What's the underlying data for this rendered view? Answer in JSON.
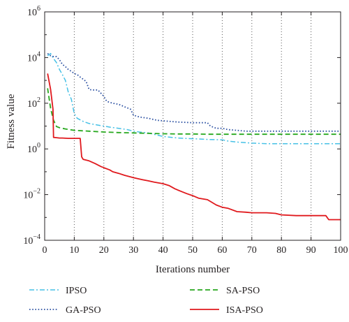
{
  "chart_data": {
    "type": "line",
    "title": "",
    "xlabel": "Iterations number",
    "ylabel": "Fitness value",
    "xlim": [
      0,
      100
    ],
    "ylim_exponent": [
      -4,
      6
    ],
    "yscale": "log",
    "grid": true,
    "grid_style": "dotted vertical",
    "legend_position": "bottom",
    "x_ticks": [
      "0",
      "10",
      "20",
      "30",
      "40",
      "50",
      "60",
      "70",
      "80",
      "90",
      "100"
    ],
    "y_ticks": [
      {
        "base": "10",
        "exp": "−4"
      },
      {
        "base": "10",
        "exp": "−2"
      },
      {
        "base": "10",
        "exp": "0"
      },
      {
        "base": "10",
        "exp": "2"
      },
      {
        "base": "10",
        "exp": "4"
      },
      {
        "base": "10",
        "exp": "6"
      }
    ],
    "series": [
      {
        "name": "IPSO",
        "color": "#47c1e6",
        "dash": "7,3,2,3",
        "width": 1.5,
        "x": [
          1,
          2,
          3,
          4,
          5,
          6,
          7,
          8,
          9,
          10,
          11,
          13,
          15,
          18,
          20,
          22,
          25,
          28,
          30,
          32,
          35,
          40,
          45,
          50,
          55,
          60,
          62,
          65,
          70,
          75,
          80,
          85,
          90,
          95,
          100
        ],
        "y": [
          12000,
          15000,
          9000,
          6000,
          3000,
          1800,
          1000,
          300,
          150,
          35,
          22,
          16,
          13,
          11,
          10,
          9,
          8,
          7,
          6,
          5.5,
          5,
          3.5,
          3,
          2.8,
          2.6,
          2.5,
          2.2,
          2,
          1.8,
          1.7,
          1.7,
          1.7,
          1.7,
          1.7,
          1.7
        ]
      },
      {
        "name": "SA-PSO",
        "color": "#27a81e",
        "dash": "7,4",
        "width": 1.8,
        "x": [
          1,
          2,
          3,
          4,
          5,
          7,
          10,
          15,
          20,
          25,
          30,
          35,
          40,
          45,
          50,
          55,
          60,
          70,
          80,
          90,
          100
        ],
        "y": [
          450,
          60,
          18,
          9.5,
          8.5,
          7.5,
          6.5,
          6,
          5.5,
          5.2,
          5,
          4.8,
          4.6,
          4.5,
          4.5,
          4.4,
          4.4,
          4.4,
          4.4,
          4.4,
          4.4
        ]
      },
      {
        "name": "GA-PSO",
        "color": "#2a4fa1",
        "dash": "1.6,2.6",
        "width": 1.8,
        "x": [
          1,
          2,
          3,
          4,
          5,
          6,
          7,
          8,
          9,
          10,
          11,
          12,
          14,
          15,
          16,
          18,
          20,
          21,
          23,
          25,
          27,
          29,
          30,
          32,
          35,
          38,
          40,
          45,
          50,
          55,
          56,
          58,
          60,
          62,
          65,
          68,
          70,
          75,
          80,
          85,
          90,
          95,
          100
        ],
        "y": [
          15000,
          12000,
          11000,
          11000,
          8000,
          5000,
          4000,
          3000,
          2500,
          2000,
          1800,
          1400,
          900,
          400,
          380,
          380,
          200,
          120,
          100,
          90,
          70,
          55,
          30,
          25,
          22,
          18,
          17,
          15,
          14,
          14,
          10,
          8,
          8,
          7,
          6.5,
          6,
          6,
          6,
          6,
          6,
          6,
          6,
          6
        ]
      },
      {
        "name": "ISA-PSO",
        "color": "#e0191d",
        "dash": "",
        "width": 1.8,
        "x": [
          1,
          2,
          2.8,
          3,
          4,
          5,
          6,
          8,
          10,
          12,
          12.5,
          13,
          15,
          17,
          19,
          20,
          22,
          23,
          25,
          27,
          29,
          30,
          33,
          35,
          37,
          40,
          42,
          44,
          46,
          48,
          50,
          52,
          55,
          56,
          58,
          60,
          62,
          65,
          68,
          70,
          75,
          78,
          80,
          85,
          88,
          90,
          93,
          95,
          96,
          100
        ],
        "y": [
          2000,
          400,
          55,
          3.2,
          3.1,
          3.0,
          3.0,
          2.9,
          2.9,
          2.9,
          0.45,
          0.35,
          0.3,
          0.23,
          0.17,
          0.15,
          0.12,
          0.1,
          0.085,
          0.07,
          0.06,
          0.055,
          0.045,
          0.04,
          0.035,
          0.03,
          0.025,
          0.018,
          0.014,
          0.011,
          0.009,
          0.007,
          0.006,
          0.005,
          0.0035,
          0.0028,
          0.0025,
          0.0018,
          0.0017,
          0.0016,
          0.0016,
          0.0015,
          0.0013,
          0.0012,
          0.0012,
          0.0012,
          0.0012,
          0.0012,
          0.0008,
          0.0008
        ]
      }
    ],
    "legend": [
      {
        "series": "IPSO",
        "label": "IPSO"
      },
      {
        "series": "SA-PSO",
        "label": "SA-PSO"
      },
      {
        "series": "GA-PSO",
        "label": "GA-PSO"
      },
      {
        "series": "ISA-PSO",
        "label": "ISA-PSO"
      }
    ]
  }
}
